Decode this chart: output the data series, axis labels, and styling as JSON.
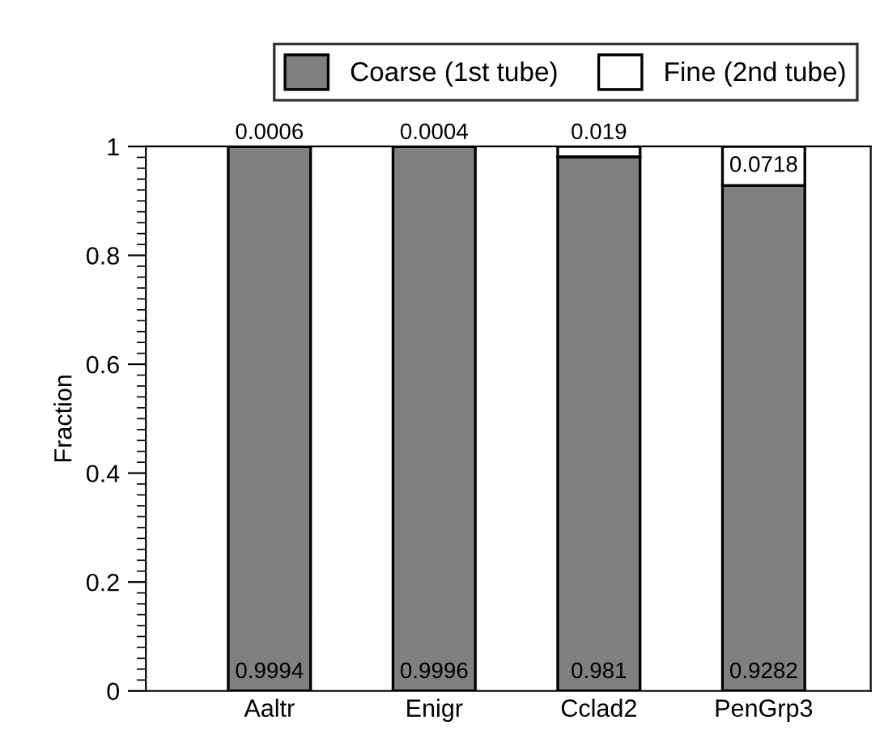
{
  "chart_data": {
    "type": "bar",
    "stacked": true,
    "ylabel": "Fraction",
    "categories": [
      "Aaltr",
      "Enigr",
      "Cclad2",
      "PenGrp3"
    ],
    "series": [
      {
        "name": "Coarse (1st tube)",
        "color": "#808080",
        "values": [
          0.9994,
          0.9996,
          0.981,
          0.9282
        ],
        "value_labels": [
          "0.9994",
          "0.9996",
          "0.981",
          "0.9282"
        ]
      },
      {
        "name": "Fine (2nd tube)",
        "color": "#ffffff",
        "values": [
          0.0006,
          0.0004,
          0.019,
          0.0718
        ],
        "value_labels": [
          "0.0006",
          "0.0004",
          "0.019",
          "0.0718"
        ]
      }
    ],
    "ylim": [
      0,
      1
    ],
    "yticks": [
      0,
      0.2,
      0.4,
      0.6,
      0.8,
      1
    ],
    "grid": false,
    "legend": "top"
  }
}
